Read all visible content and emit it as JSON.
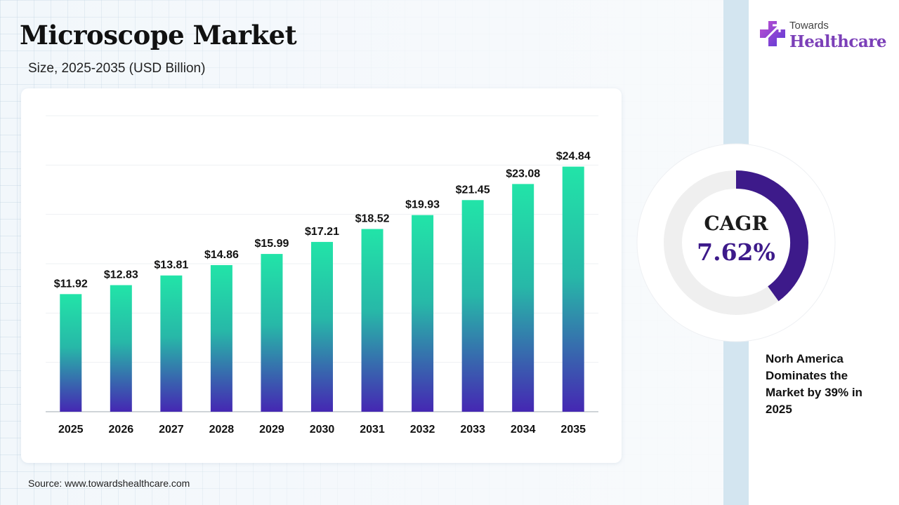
{
  "header": {
    "title": "Microscope Market",
    "subtitle": "Size, 2025-2035 (USD Billion)"
  },
  "brand": {
    "line1": "Towards",
    "line2": "Healthcare",
    "icon": "medical-cross-icon"
  },
  "cagr": {
    "label": "CAGR",
    "value": "7.62%",
    "ring_fill_fraction": 0.4
  },
  "note": "Norh America Dominates the Market by 39% in 2025",
  "source": "Source: www.towardshealthcare.com",
  "colors": {
    "bar_top": "#22e4a8",
    "bar_bottom": "#4527b3",
    "ring_accent": "#3d1a8a",
    "ring_track": "#efefef",
    "brand_purple": "#7b3fb8"
  },
  "chart_data": {
    "type": "bar",
    "title": "Microscope Market",
    "subtitle": "Size, 2025-2035 (USD Billion)",
    "categories": [
      "2025",
      "2026",
      "2027",
      "2028",
      "2029",
      "2030",
      "2031",
      "2032",
      "2033",
      "2034",
      "2035"
    ],
    "values": [
      11.92,
      12.83,
      13.81,
      14.86,
      15.99,
      17.21,
      18.52,
      19.93,
      21.45,
      23.08,
      24.84
    ],
    "value_labels": [
      "$11.92",
      "$12.83",
      "$13.81",
      "$14.86",
      "$15.99",
      "$17.21",
      "$18.52",
      "$19.93",
      "$21.45",
      "$23.08",
      "$24.84"
    ],
    "xlabel": "",
    "ylabel": "",
    "ylim": [
      0,
      30
    ],
    "grid": true,
    "legend": "none"
  }
}
